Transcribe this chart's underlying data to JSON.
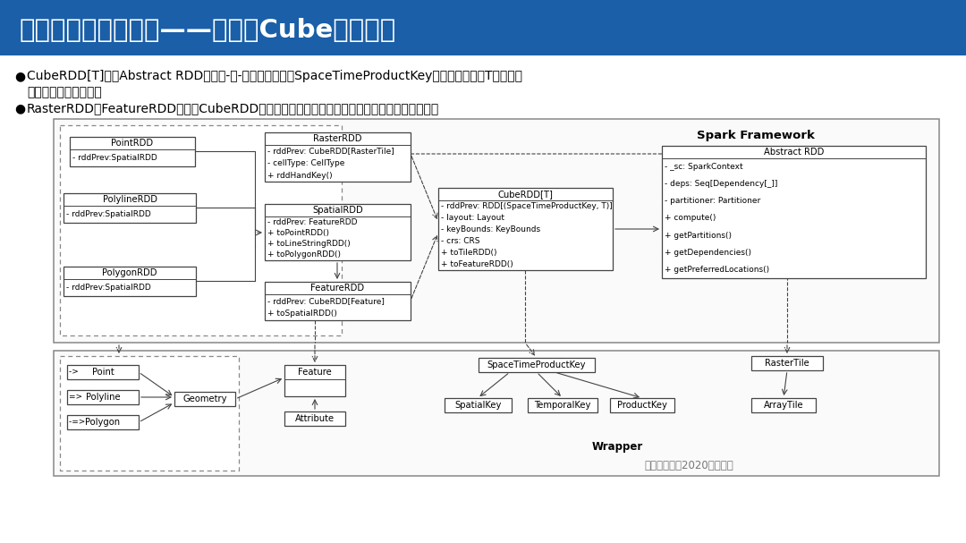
{
  "title": "三、时空立方体设计——分布式Cube切片对象",
  "title_bg": "#1a5fa8",
  "title_color": "#ffffff",
  "bg_color": "#f0f0f0",
  "bullet1a": "CubeRDD[T]继承Abstract RDD，以时-空-产品信息作为键SpaceTimeProductKey，接受泛型对象T作为值，",
  "bullet1b": "满足多源数据集成需求",
  "bullet2": "RasterRDD和FeatureRDD分别由CubeRDD转换，代表分布式内存栅格对象和分布式内存要素对象",
  "watermark": "中国测绘学会2020学术年会",
  "spark_label": "Spark Framework",
  "wrapper_label": "Wrapper"
}
